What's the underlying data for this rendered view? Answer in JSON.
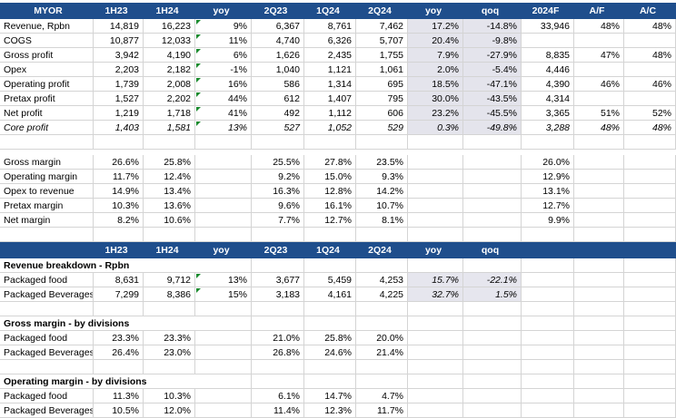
{
  "header1": [
    "MYOR",
    "1H23",
    "1H24",
    "yoy",
    "2Q23",
    "1Q24",
    "2Q24",
    "yoy",
    "qoq",
    "2024F",
    "A/F",
    "A/C"
  ],
  "pnl_rows": [
    {
      "label": "Revenue, Rpbn",
      "v": [
        "14,819",
        "16,223",
        "9%",
        "6,367",
        "8,761",
        "7,462",
        "17.2%",
        "-14.8%",
        "33,946",
        "48%",
        "48%"
      ]
    },
    {
      "label": "COGS",
      "v": [
        "10,877",
        "12,033",
        "11%",
        "4,740",
        "6,326",
        "5,707",
        "20.4%",
        "-9.8%",
        "",
        "",
        ""
      ]
    },
    {
      "label": "Gross profit",
      "v": [
        "3,942",
        "4,190",
        "6%",
        "1,626",
        "2,435",
        "1,755",
        "7.9%",
        "-27.9%",
        "8,835",
        "47%",
        "48%"
      ]
    },
    {
      "label": "Opex",
      "v": [
        "2,203",
        "2,182",
        "-1%",
        "1,040",
        "1,121",
        "1,061",
        "2.0%",
        "-5.4%",
        "4,446",
        "",
        ""
      ]
    },
    {
      "label": "Operating profit",
      "v": [
        "1,739",
        "2,008",
        "16%",
        "586",
        "1,314",
        "695",
        "18.5%",
        "-47.1%",
        "4,390",
        "46%",
        "46%"
      ]
    },
    {
      "label": "Pretax profit",
      "v": [
        "1,527",
        "2,202",
        "44%",
        "612",
        "1,407",
        "795",
        "30.0%",
        "-43.5%",
        "4,314",
        "",
        ""
      ]
    },
    {
      "label": "Net profit",
      "v": [
        "1,219",
        "1,718",
        "41%",
        "492",
        "1,112",
        "606",
        "23.2%",
        "-45.5%",
        "3,365",
        "51%",
        "52%"
      ]
    },
    {
      "label": "Core profit",
      "v": [
        "1,403",
        "1,581",
        "13%",
        "527",
        "1,052",
        "529",
        "0.3%",
        "-49.8%",
        "3,288",
        "48%",
        "48%"
      ]
    }
  ],
  "margin_rows": [
    {
      "label": "Gross margin",
      "v": [
        "26.6%",
        "25.8%",
        "",
        "25.5%",
        "27.8%",
        "23.5%",
        "",
        "",
        "26.0%",
        "",
        ""
      ]
    },
    {
      "label": "Operating margin",
      "v": [
        "11.7%",
        "12.4%",
        "",
        "9.2%",
        "15.0%",
        "9.3%",
        "",
        "",
        "12.9%",
        "",
        ""
      ]
    },
    {
      "label": "Opex to revenue",
      "v": [
        "14.9%",
        "13.4%",
        "",
        "16.3%",
        "12.8%",
        "14.2%",
        "",
        "",
        "13.1%",
        "",
        ""
      ]
    },
    {
      "label": "Pretax margin",
      "v": [
        "10.3%",
        "13.6%",
        "",
        "9.6%",
        "16.1%",
        "10.7%",
        "",
        "",
        "12.7%",
        "",
        ""
      ]
    },
    {
      "label": "Net margin",
      "v": [
        "8.2%",
        "10.6%",
        "",
        "7.7%",
        "12.7%",
        "8.1%",
        "",
        "",
        "9.9%",
        "",
        ""
      ]
    }
  ],
  "header2": [
    "",
    "1H23",
    "1H24",
    "yoy",
    "2Q23",
    "1Q24",
    "2Q24",
    "yoy",
    "qoq",
    "",
    "",
    ""
  ],
  "section_titles": {
    "revenue": "Revenue breakdown - Rpbn",
    "gross": "Gross margin - by divisions",
    "operating": "Operating margin - by divisions"
  },
  "rev_rows": [
    {
      "label": "Packaged food",
      "v": [
        "8,631",
        "9,712",
        "13%",
        "3,677",
        "5,459",
        "4,253",
        "15.7%",
        "-22.1%",
        "",
        "",
        ""
      ]
    },
    {
      "label": "Packaged Beverages",
      "v": [
        "7,299",
        "8,386",
        "15%",
        "3,183",
        "4,161",
        "4,225",
        "32.7%",
        "1.5%",
        "",
        "",
        ""
      ]
    }
  ],
  "gm_rows": [
    {
      "label": "Packaged food",
      "v": [
        "23.3%",
        "23.3%",
        "",
        "21.0%",
        "25.8%",
        "20.0%",
        "",
        "",
        "",
        "",
        ""
      ]
    },
    {
      "label": "Packaged Beverages",
      "v": [
        "26.4%",
        "23.0%",
        "",
        "26.8%",
        "24.6%",
        "21.4%",
        "",
        "",
        "",
        "",
        ""
      ]
    }
  ],
  "om_rows": [
    {
      "label": "Packaged food",
      "v": [
        "11.3%",
        "10.3%",
        "",
        "6.1%",
        "14.7%",
        "4.7%",
        "",
        "",
        "",
        "",
        ""
      ]
    },
    {
      "label": "Packaged Beverages",
      "v": [
        "10.5%",
        "12.0%",
        "",
        "11.4%",
        "12.3%",
        "11.7%",
        "",
        "",
        "",
        "",
        ""
      ]
    }
  ],
  "colors": {
    "header_bg": "#1f4e8c",
    "header_text": "#ffffff",
    "shade": "#e4e4ec",
    "flag": "#1a8a2e"
  }
}
